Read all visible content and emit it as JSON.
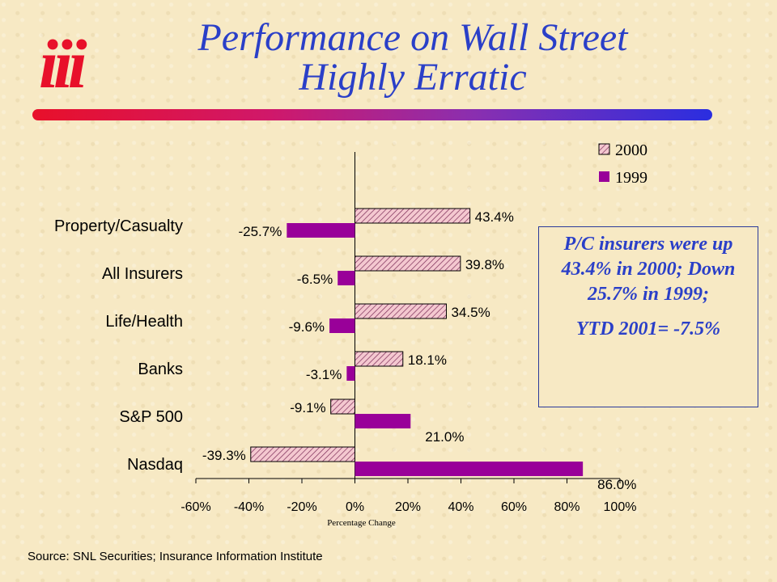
{
  "slide": {
    "title_line1": "Performance on Wall Street",
    "title_line2": "Highly Erratic",
    "logo_text": "iii",
    "callout_main": "P/C insurers were up 43.4% in 2000; Down 25.7% in 1999;",
    "callout_ytd": "YTD 2001= -7.5%",
    "source": "Source: SNL Securities; Insurance Information Institute"
  },
  "colors": {
    "title": "#2a3fc8",
    "bar_1999": "#990099",
    "bar_2000_fill": "#f4c8d0",
    "bar_2000_hatch": "#7a2a55",
    "logo": "#e8102a"
  },
  "chart_data": {
    "type": "bar",
    "orientation": "horizontal",
    "categories": [
      "Property/Casualty",
      "All Insurers",
      "Life/Health",
      "Banks",
      "S&P 500",
      "Nasdaq"
    ],
    "series": [
      {
        "name": "2000",
        "values": [
          43.4,
          39.8,
          34.5,
          18.1,
          -9.1,
          -39.3
        ],
        "labels": [
          "43.4%",
          "39.8%",
          "34.5%",
          "18.1%",
          "-9.1%",
          "-39.3%"
        ]
      },
      {
        "name": "1999",
        "values": [
          -25.7,
          -6.5,
          -9.6,
          -3.1,
          21.0,
          86.0
        ],
        "labels": [
          "-25.7%",
          "-6.5%",
          "-9.6%",
          "-3.1%",
          "21.0%",
          "86.0%"
        ]
      }
    ],
    "xlim": [
      -60,
      100
    ],
    "xticks": [
      -60,
      -40,
      -20,
      0,
      20,
      40,
      60,
      80,
      100
    ],
    "xtick_labels": [
      "-60%",
      "-40%",
      "-20%",
      "0%",
      "20%",
      "40%",
      "60%",
      "80%",
      "100%"
    ],
    "xlabel": "Percentage Change",
    "legend_position": "top-right",
    "grid": false
  }
}
